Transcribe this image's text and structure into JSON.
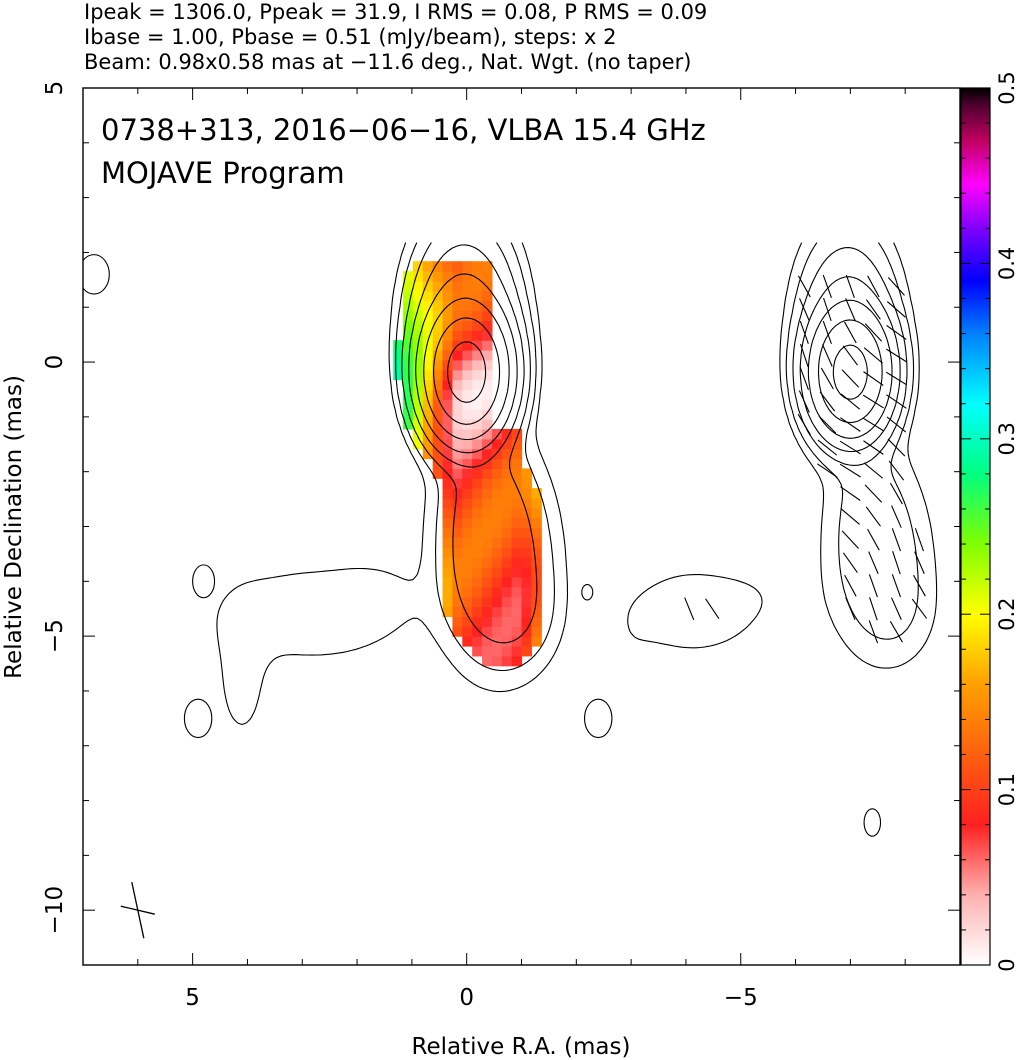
{
  "header": {
    "line1": "Ipeak = 1306.0, Ppeak = 31.9, I RMS = 0.08, P RMS = 0.09",
    "line2": "Ibase = 1.00, Pbase = 0.51 (mJy/beam), steps: x 2",
    "line3": "Beam: 0.98x0.58 mas at −11.6 deg., Nat. Wgt. (no taper)"
  },
  "chart_data": {
    "type": "heatmap",
    "title": "0738+313, 2016−06−16, VLBA 15.4 GHz",
    "subtitle": "MOJAVE Program",
    "xlabel": "Relative R.A. (mas)",
    "ylabel": "Relative Declination (mas)",
    "xlim": [
      7,
      -9
    ],
    "ylim": [
      -11,
      5
    ],
    "x_ticks": [
      {
        "value": 5,
        "label": "5"
      },
      {
        "value": 0,
        "label": "0"
      },
      {
        "value": -5,
        "label": "−5"
      }
    ],
    "y_ticks": [
      {
        "value": 5,
        "label": "5"
      },
      {
        "value": 0,
        "label": "0"
      },
      {
        "value": -5,
        "label": "−5"
      },
      {
        "value": -10,
        "label": "−10"
      }
    ],
    "colorbar": {
      "range": [
        0,
        0.5
      ],
      "ticks": [
        {
          "value": 0,
          "label": "0"
        },
        {
          "value": 0.1,
          "label": "0.1"
        },
        {
          "value": 0.2,
          "label": "0.2"
        },
        {
          "value": 0.3,
          "label": "0.3"
        },
        {
          "value": 0.4,
          "label": "0.4"
        },
        {
          "value": 0.5,
          "label": "0.5"
        }
      ],
      "stops": [
        {
          "v": 0.0,
          "color": "#ffffff"
        },
        {
          "v": 0.04,
          "color": "#ffb0b0"
        },
        {
          "v": 0.08,
          "color": "#ff2020"
        },
        {
          "v": 0.12,
          "color": "#ff6010"
        },
        {
          "v": 0.16,
          "color": "#ffa000"
        },
        {
          "v": 0.2,
          "color": "#ffff00"
        },
        {
          "v": 0.24,
          "color": "#80ff00"
        },
        {
          "v": 0.28,
          "color": "#00ff80"
        },
        {
          "v": 0.32,
          "color": "#00ffff"
        },
        {
          "v": 0.36,
          "color": "#0080ff"
        },
        {
          "v": 0.39,
          "color": "#0000ff"
        },
        {
          "v": 0.42,
          "color": "#8000ff"
        },
        {
          "v": 0.445,
          "color": "#ff00ff"
        },
        {
          "v": 0.47,
          "color": "#c00060"
        },
        {
          "v": 0.49,
          "color": "#500030"
        },
        {
          "v": 0.5,
          "color": "#000000"
        }
      ]
    },
    "contour_levels": 11,
    "copy_offset_ra": -7.0
  }
}
